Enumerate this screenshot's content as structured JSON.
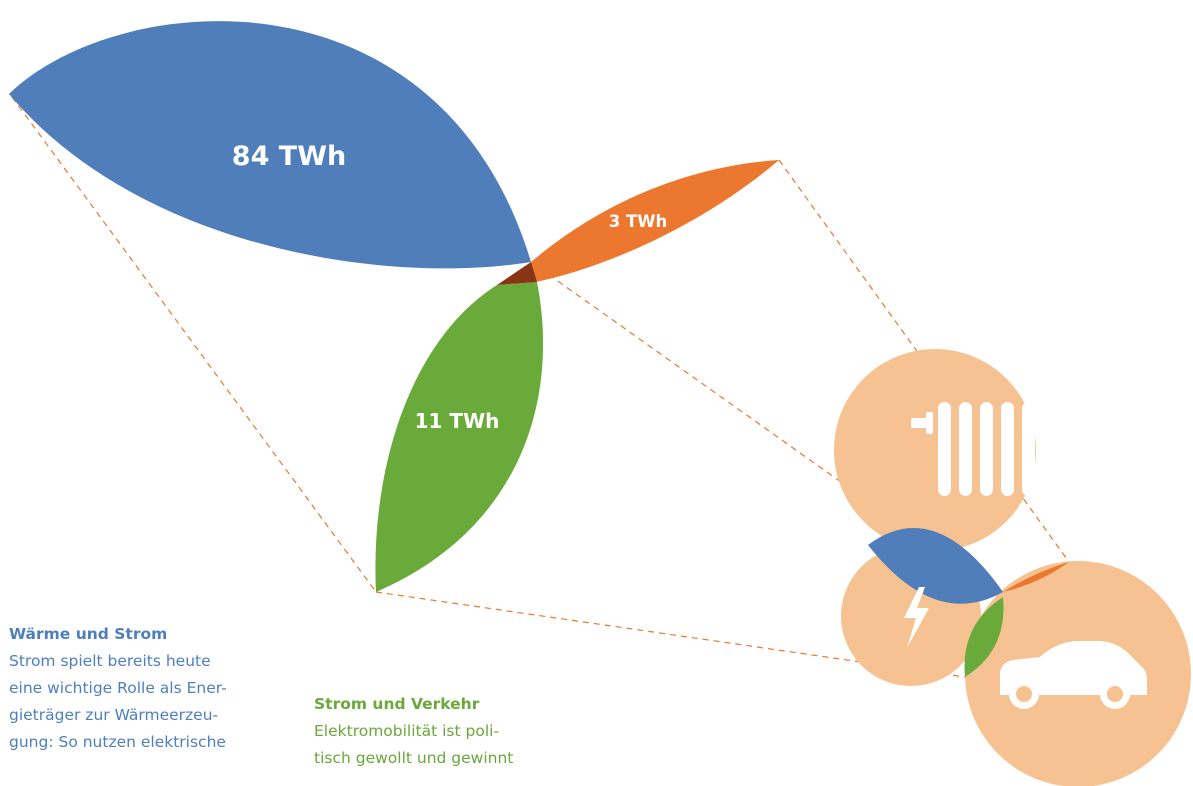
{
  "colors": {
    "heat_electricity": "#4f7eba",
    "electricity_traffic": "#6aaa3a",
    "heat_traffic": "#ec772f",
    "overlap_center": "#8a3416",
    "icon_circle": "#f6c291",
    "connector_line": "#ec772f",
    "heading_blue": "#4e7fbd",
    "heading_green": "#6aa83a"
  },
  "icons": [
    "radiator-icon",
    "lightning-icon",
    "car-icon"
  ],
  "petals": [
    {
      "id": "heat-electricity",
      "value_twh": 84,
      "label": "84 TWh"
    },
    {
      "id": "heat-traffic",
      "value_twh": 3,
      "label": "3 TWh"
    },
    {
      "id": "electricity-traffic",
      "value_twh": 11,
      "label": "11 TWh"
    }
  ],
  "texts": {
    "heat": {
      "heading": "Wärme und Strom",
      "lines": [
        "Strom spielt bereits heute",
        "eine wichtige Rolle als Ener-",
        "gieträger zur Wärmeerzeu-",
        "gung: So nutzen elektrische"
      ]
    },
    "traffic": {
      "heading": "Strom und Verkehr",
      "lines": [
        "Elektromobilität ist poli-",
        "tisch gewollt und gewinnt"
      ]
    }
  }
}
